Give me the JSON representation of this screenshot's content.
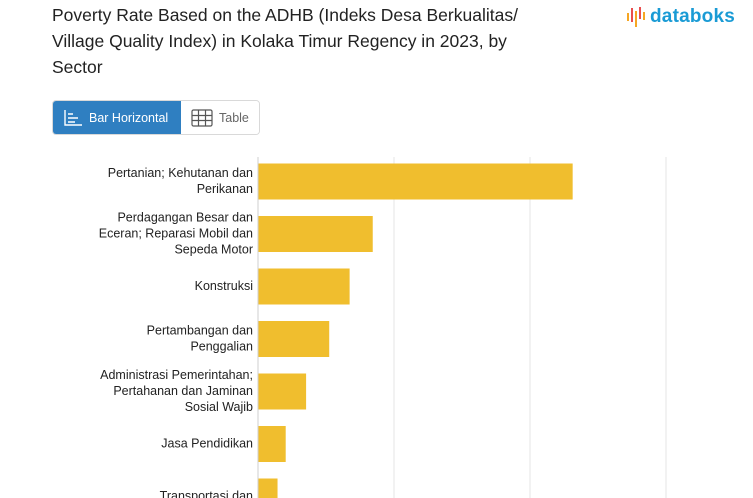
{
  "title_lines": [
    "Poverty Rate Based on the ADHB (Indeks Desa Berkualitas/",
    "Village Quality Index) in Kolaka Timur Regency in 2023, by",
    "Sector"
  ],
  "brand": {
    "name": "databoks",
    "logo_icon": "databoks-bars-icon",
    "accent": "#1a9bd5",
    "logo_colors": [
      "#f6a623",
      "#e94e4e"
    ]
  },
  "view_toggle": {
    "options": [
      {
        "label": "Bar Horizontal",
        "icon": "bar-horizontal-icon",
        "active": true
      },
      {
        "label": "Table",
        "icon": "table-grid-icon",
        "active": false
      }
    ],
    "active_color": "#2f7fc1"
  },
  "chart_data": {
    "type": "bar",
    "orientation": "horizontal",
    "bar_color": "#f0be2e",
    "grid": true,
    "categories": [
      [
        "Pertanian; Kehutanan dan",
        "Perikanan"
      ],
      [
        "Perdagangan Besar dan",
        "Eceran; Reparasi Mobil dan",
        "Sepeda Motor"
      ],
      [
        "Konstruksi"
      ],
      [
        "Pertambangan dan",
        "Penggalian"
      ],
      [
        "Administrasi Pemerintahan;",
        "Pertahanan dan Jaminan",
        "Sosial Wajib"
      ],
      [
        "Jasa Pendidikan"
      ],
      [
        "Transportasi dan"
      ]
    ],
    "values": [
      23.1,
      8.4,
      6.7,
      5.2,
      3.5,
      2.0,
      1.4
    ],
    "xlim": [
      0,
      30
    ]
  }
}
